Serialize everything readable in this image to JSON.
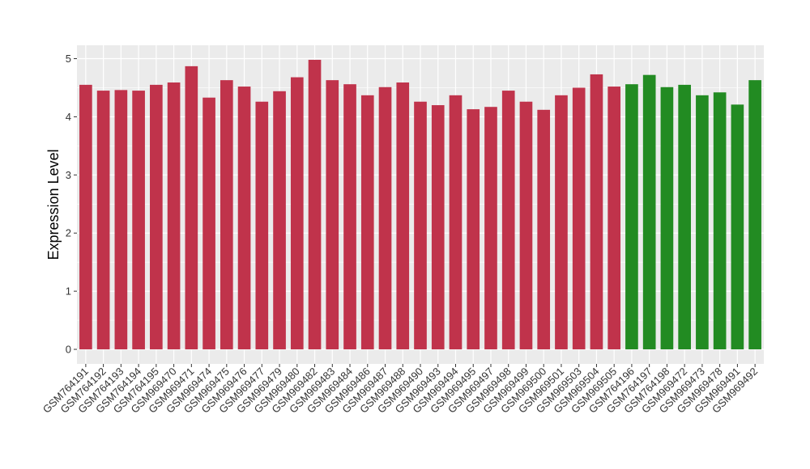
{
  "chart_data": {
    "type": "bar",
    "title": "",
    "xlabel": "",
    "ylabel": "Expression Level",
    "ylim": [
      -0.25,
      5.23
    ],
    "yticks": [
      0,
      1,
      2,
      3,
      4,
      5
    ],
    "grid": true,
    "categories": [
      "GSM764191",
      "GSM764192",
      "GSM764193",
      "GSM764194",
      "GSM764195",
      "GSM969470",
      "GSM969471",
      "GSM969474",
      "GSM969475",
      "GSM969476",
      "GSM969477",
      "GSM969479",
      "GSM969480",
      "GSM969482",
      "GSM969483",
      "GSM969484",
      "GSM969486",
      "GSM969487",
      "GSM969488",
      "GSM969490",
      "GSM969493",
      "GSM969494",
      "GSM969495",
      "GSM969497",
      "GSM969498",
      "GSM969499",
      "GSM969500",
      "GSM969501",
      "GSM969503",
      "GSM969504",
      "GSM969505",
      "GSM764196",
      "GSM764197",
      "GSM764198",
      "GSM969472",
      "GSM969473",
      "GSM969478",
      "GSM969491",
      "GSM969492"
    ],
    "values": [
      4.55,
      4.45,
      4.46,
      4.45,
      4.55,
      4.59,
      4.87,
      4.33,
      4.63,
      4.52,
      4.26,
      4.44,
      4.68,
      4.98,
      4.63,
      4.56,
      4.37,
      4.51,
      4.59,
      4.26,
      4.2,
      4.37,
      4.13,
      4.17,
      4.45,
      4.26,
      4.12,
      4.37,
      4.5,
      4.73,
      4.52,
      4.56,
      4.72,
      4.51,
      4.55,
      4.37,
      4.42,
      4.21,
      4.63
    ],
    "bar_colors": [
      "#c0334b",
      "#c0334b",
      "#c0334b",
      "#c0334b",
      "#c0334b",
      "#c0334b",
      "#c0334b",
      "#c0334b",
      "#c0334b",
      "#c0334b",
      "#c0334b",
      "#c0334b",
      "#c0334b",
      "#c0334b",
      "#c0334b",
      "#c0334b",
      "#c0334b",
      "#c0334b",
      "#c0334b",
      "#c0334b",
      "#c0334b",
      "#c0334b",
      "#c0334b",
      "#c0334b",
      "#c0334b",
      "#c0334b",
      "#c0334b",
      "#c0334b",
      "#c0334b",
      "#c0334b",
      "#c0334b",
      "#228b22",
      "#228b22",
      "#228b22",
      "#228b22",
      "#228b22",
      "#228b22",
      "#228b22",
      "#228b22"
    ],
    "panel_background": "#ebebeb",
    "grid_color": "#ffffff"
  }
}
